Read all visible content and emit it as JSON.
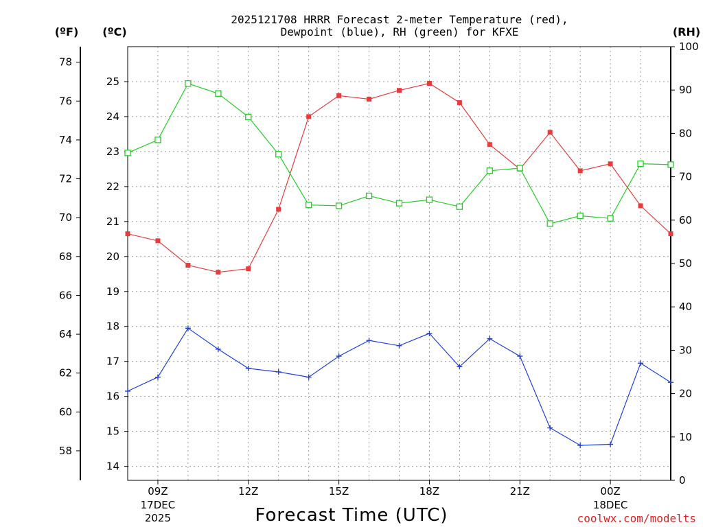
{
  "chart_data": {
    "type": "line",
    "title_line1": "2025121708 HRRR Forecast 2-meter Temperature (red),",
    "title_line2": "Dewpoint (blue), RH (green) for KFXE",
    "xlabel": "Forecast Time (UTC)",
    "credit": "coolwx.com/modelts",
    "units": {
      "fahrenheit": "(ºF)",
      "celsius": "(ºC)",
      "rh": "(RH)"
    },
    "x_hours": [
      8,
      9,
      10,
      11,
      12,
      13,
      14,
      15,
      16,
      17,
      18,
      19,
      20,
      21,
      22,
      23,
      24,
      25,
      26
    ],
    "x_ticks": [
      {
        "hour": 9,
        "label": "09Z",
        "date": "17DEC",
        "year": "2025"
      },
      {
        "hour": 12,
        "label": "12Z"
      },
      {
        "hour": 15,
        "label": "15Z"
      },
      {
        "hour": 18,
        "label": "18Z"
      },
      {
        "hour": 21,
        "label": "21Z"
      },
      {
        "hour": 24,
        "label": "00Z",
        "date": "18DEC"
      }
    ],
    "celsius_range": [
      13.6,
      26.0
    ],
    "celsius_ticks": [
      14,
      15,
      16,
      17,
      18,
      19,
      20,
      21,
      22,
      23,
      24,
      25
    ],
    "fahrenheit_ticks": [
      58,
      60,
      62,
      64,
      66,
      68,
      70,
      72,
      74,
      76,
      78
    ],
    "rh_range": [
      0,
      100
    ],
    "rh_ticks": [
      0,
      10,
      20,
      30,
      40,
      50,
      60,
      70,
      80,
      90,
      100
    ],
    "series": [
      {
        "name": "2-meter Temperature",
        "axis": "celsius",
        "color": "#e83c3c",
        "marker": "filled-square",
        "values": [
          20.65,
          20.45,
          19.75,
          19.55,
          19.65,
          21.35,
          24.0,
          24.6,
          24.5,
          24.75,
          24.95,
          24.4,
          23.2,
          22.5,
          23.55,
          22.45,
          22.65,
          21.45,
          20.65
        ]
      },
      {
        "name": "Dewpoint",
        "axis": "celsius",
        "color": "#2040e0",
        "marker": "plus",
        "values": [
          16.15,
          16.55,
          17.95,
          17.35,
          16.8,
          16.7,
          16.55,
          17.15,
          17.6,
          17.45,
          17.8,
          16.85,
          17.65,
          17.15,
          15.1,
          14.6,
          14.63,
          16.95,
          16.4
        ]
      },
      {
        "name": "RH",
        "axis": "rh",
        "color": "#20d020",
        "marker": "open-square",
        "values": [
          75.5,
          78.5,
          91.5,
          89.2,
          83.8,
          75.2,
          63.5,
          63.3,
          65.6,
          63.9,
          64.7,
          63.1,
          71.4,
          72.0,
          59.2,
          61.0,
          60.4,
          73.0,
          72.8
        ]
      }
    ]
  }
}
